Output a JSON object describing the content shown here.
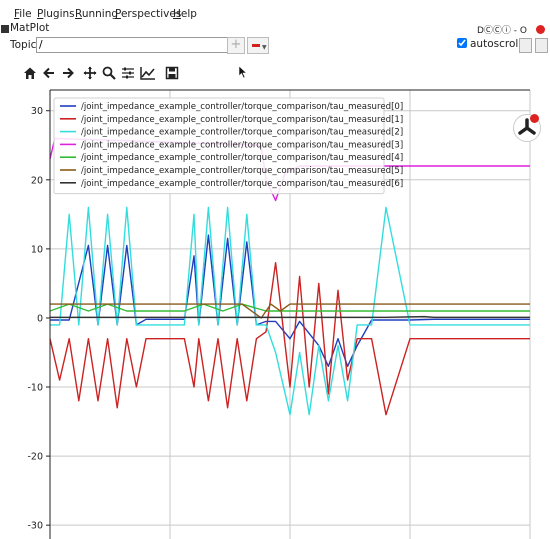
{
  "menu": [
    "File",
    "Plugins",
    "Running",
    "Perspectives",
    "Help"
  ],
  "plugin": {
    "title": "MatPlot",
    "window_controls": "DⒸⒸⓘ - O"
  },
  "topic": {
    "label": "Topic",
    "value": "/"
  },
  "autoscroll": {
    "label": "autoscroll",
    "checked": true
  },
  "chart_data": {
    "type": "line",
    "xlabel": "",
    "ylabel": "",
    "ylim": [
      -32,
      33
    ],
    "yticks": [
      30,
      20,
      10,
      0,
      -10,
      -20,
      -30
    ],
    "grid": true,
    "legend_position": "top-left",
    "series": [
      {
        "name": "/joint_impedance_example_controller/torque_comparison/tau_measured[0]",
        "color": "#1f3fbf",
        "x": [
          0,
          4,
          8,
          10,
          12,
          14,
          16,
          18,
          20,
          28,
          30,
          31,
          33,
          35,
          37,
          39,
          41,
          43,
          45,
          47,
          50,
          52,
          56,
          58,
          60,
          62,
          64,
          67,
          70,
          75,
          80,
          88,
          100
        ],
        "y": [
          -0.3,
          -0.3,
          10.5,
          -1,
          10.5,
          -1,
          10.5,
          -1,
          -0.2,
          -0.2,
          9,
          -1,
          12,
          -1,
          11.5,
          -1,
          11,
          -1,
          -0.5,
          -0.5,
          -3,
          -0.5,
          -4,
          -7,
          -3,
          -7,
          -4,
          -0.3,
          -0.3,
          -0.3,
          -0.2,
          -0.2,
          -0.2
        ]
      },
      {
        "name": "/joint_impedance_example_controller/torque_comparison/tau_measured[1]",
        "color": "#cc2222",
        "x": [
          0,
          2,
          4,
          6,
          8,
          10,
          12,
          14,
          16,
          18,
          20,
          28,
          30,
          31,
          33,
          35,
          37,
          39,
          41,
          43,
          45,
          47,
          50,
          52,
          54,
          56,
          58,
          60,
          62,
          64,
          67,
          70,
          75,
          80,
          88,
          100
        ],
        "y": [
          -3,
          -9,
          -3,
          -12,
          -3,
          -12,
          -3,
          -13,
          -3,
          -10,
          -3,
          -3,
          -10,
          -3,
          -12,
          -3,
          -13,
          -3,
          -12,
          -3,
          -2,
          8,
          -10,
          6,
          -10,
          5,
          -11,
          4,
          -9,
          -3,
          -3,
          -14,
          -3,
          -3,
          -3,
          -3
        ]
      },
      {
        "name": "/joint_impedance_example_controller/torque_comparison/tau_measured[2]",
        "color": "#33dddd",
        "x": [
          0,
          2,
          4,
          6,
          8,
          10,
          12,
          14,
          16,
          18,
          20,
          28,
          30,
          31,
          33,
          35,
          37,
          39,
          41,
          43,
          45,
          47,
          50,
          52,
          54,
          56,
          58,
          60,
          62,
          64,
          67,
          70,
          75,
          80,
          88,
          100
        ],
        "y": [
          -1,
          -1,
          15,
          -1,
          16,
          -1,
          15,
          -1,
          16,
          -1,
          -1,
          -1,
          15,
          -1,
          16,
          -1,
          16,
          -1,
          15,
          -1,
          -1,
          -5,
          -14,
          -5,
          -14,
          -4,
          -12,
          -4,
          -12,
          -1,
          -1,
          16,
          -1,
          -1,
          -1,
          -1
        ]
      },
      {
        "name": "/joint_impedance_example_controller/torque_comparison/tau_measured[3]",
        "color": "#dd22dd",
        "x": [
          0,
          1,
          44,
          45,
          47,
          49,
          52,
          55,
          58,
          62,
          66,
          70,
          75,
          80,
          85,
          90,
          95,
          100
        ],
        "y": [
          23,
          26,
          25,
          20,
          17,
          21,
          22,
          22,
          22,
          22,
          22,
          22,
          22,
          22,
          22,
          22,
          22,
          22
        ]
      },
      {
        "name": "/joint_impedance_example_controller/torque_comparison/tau_measured[4]",
        "color": "#33bb33",
        "x": [
          0,
          4,
          8,
          12,
          16,
          20,
          28,
          32,
          36,
          40,
          45,
          60,
          70,
          78,
          88,
          100
        ],
        "y": [
          1,
          2,
          1,
          2,
          1,
          1,
          1,
          2,
          1,
          2,
          1,
          1,
          1,
          1,
          1,
          1
        ]
      },
      {
        "name": "/joint_impedance_example_controller/torque_comparison/tau_measured[5]",
        "color": "#8a5a1a",
        "x": [
          0,
          10,
          20,
          30,
          40,
          44,
          46,
          48,
          50,
          55,
          60,
          70,
          80,
          90,
          100
        ],
        "y": [
          2,
          2,
          2,
          2,
          2,
          0,
          2,
          1,
          2,
          2,
          2,
          2,
          2,
          2,
          2
        ]
      },
      {
        "name": "/joint_impedance_example_controller/torque_comparison/tau_measured[6]",
        "color": "#333333",
        "x": [
          0,
          10,
          20,
          30,
          40,
          50,
          60,
          70,
          78,
          80,
          90,
          100
        ],
        "y": [
          0.1,
          0.1,
          0.1,
          0.1,
          0.1,
          0.1,
          0.1,
          0.1,
          0.2,
          0.1,
          0.1,
          0.1
        ]
      }
    ]
  }
}
